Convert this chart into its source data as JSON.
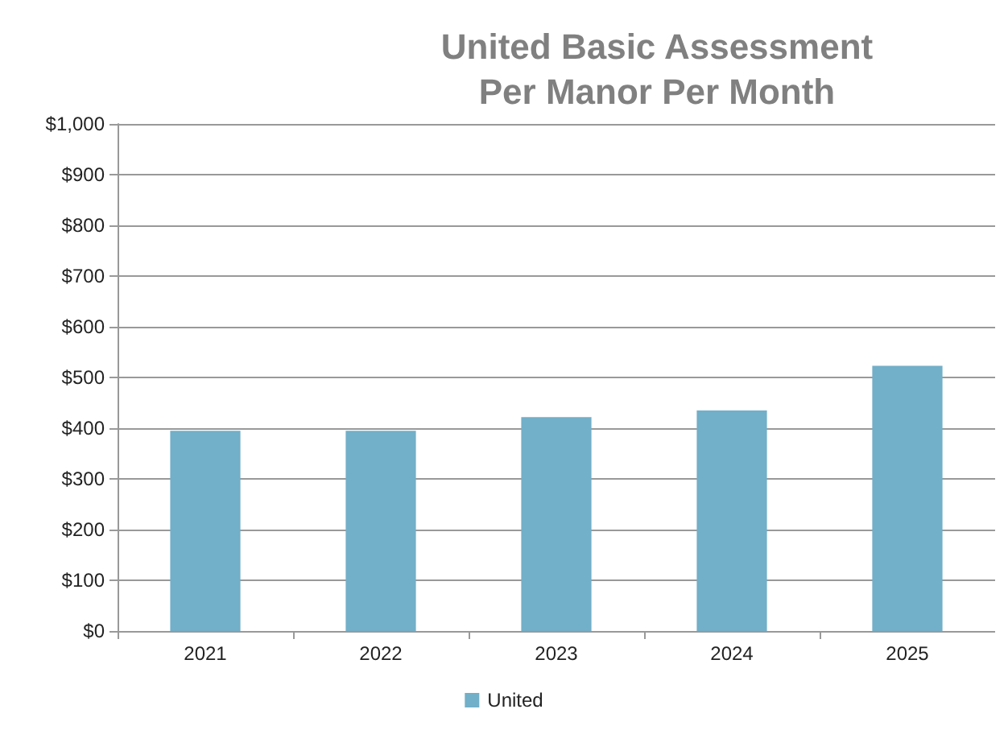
{
  "chart_data": {
    "type": "bar",
    "title": "United Basic Assessment\nPer Manor Per Month",
    "categories": [
      "2021",
      "2022",
      "2023",
      "2024",
      "2025"
    ],
    "series": [
      {
        "name": "United",
        "color": "#72afc8",
        "values": [
          395,
          395,
          422,
          435,
          523
        ]
      }
    ],
    "ylim": [
      0,
      1000
    ],
    "yticks": [
      {
        "value": 0,
        "label": "$0"
      },
      {
        "value": 100,
        "label": "$100"
      },
      {
        "value": 200,
        "label": "$200"
      },
      {
        "value": 300,
        "label": "$300"
      },
      {
        "value": 400,
        "label": "$400"
      },
      {
        "value": 500,
        "label": "$500"
      },
      {
        "value": 600,
        "label": "$600"
      },
      {
        "value": 700,
        "label": "$700"
      },
      {
        "value": 800,
        "label": "$800"
      },
      {
        "value": 900,
        "label": "$900"
      },
      {
        "value": 1000,
        "label": "$1,000"
      }
    ],
    "grid": "y",
    "legend": "bottom"
  }
}
